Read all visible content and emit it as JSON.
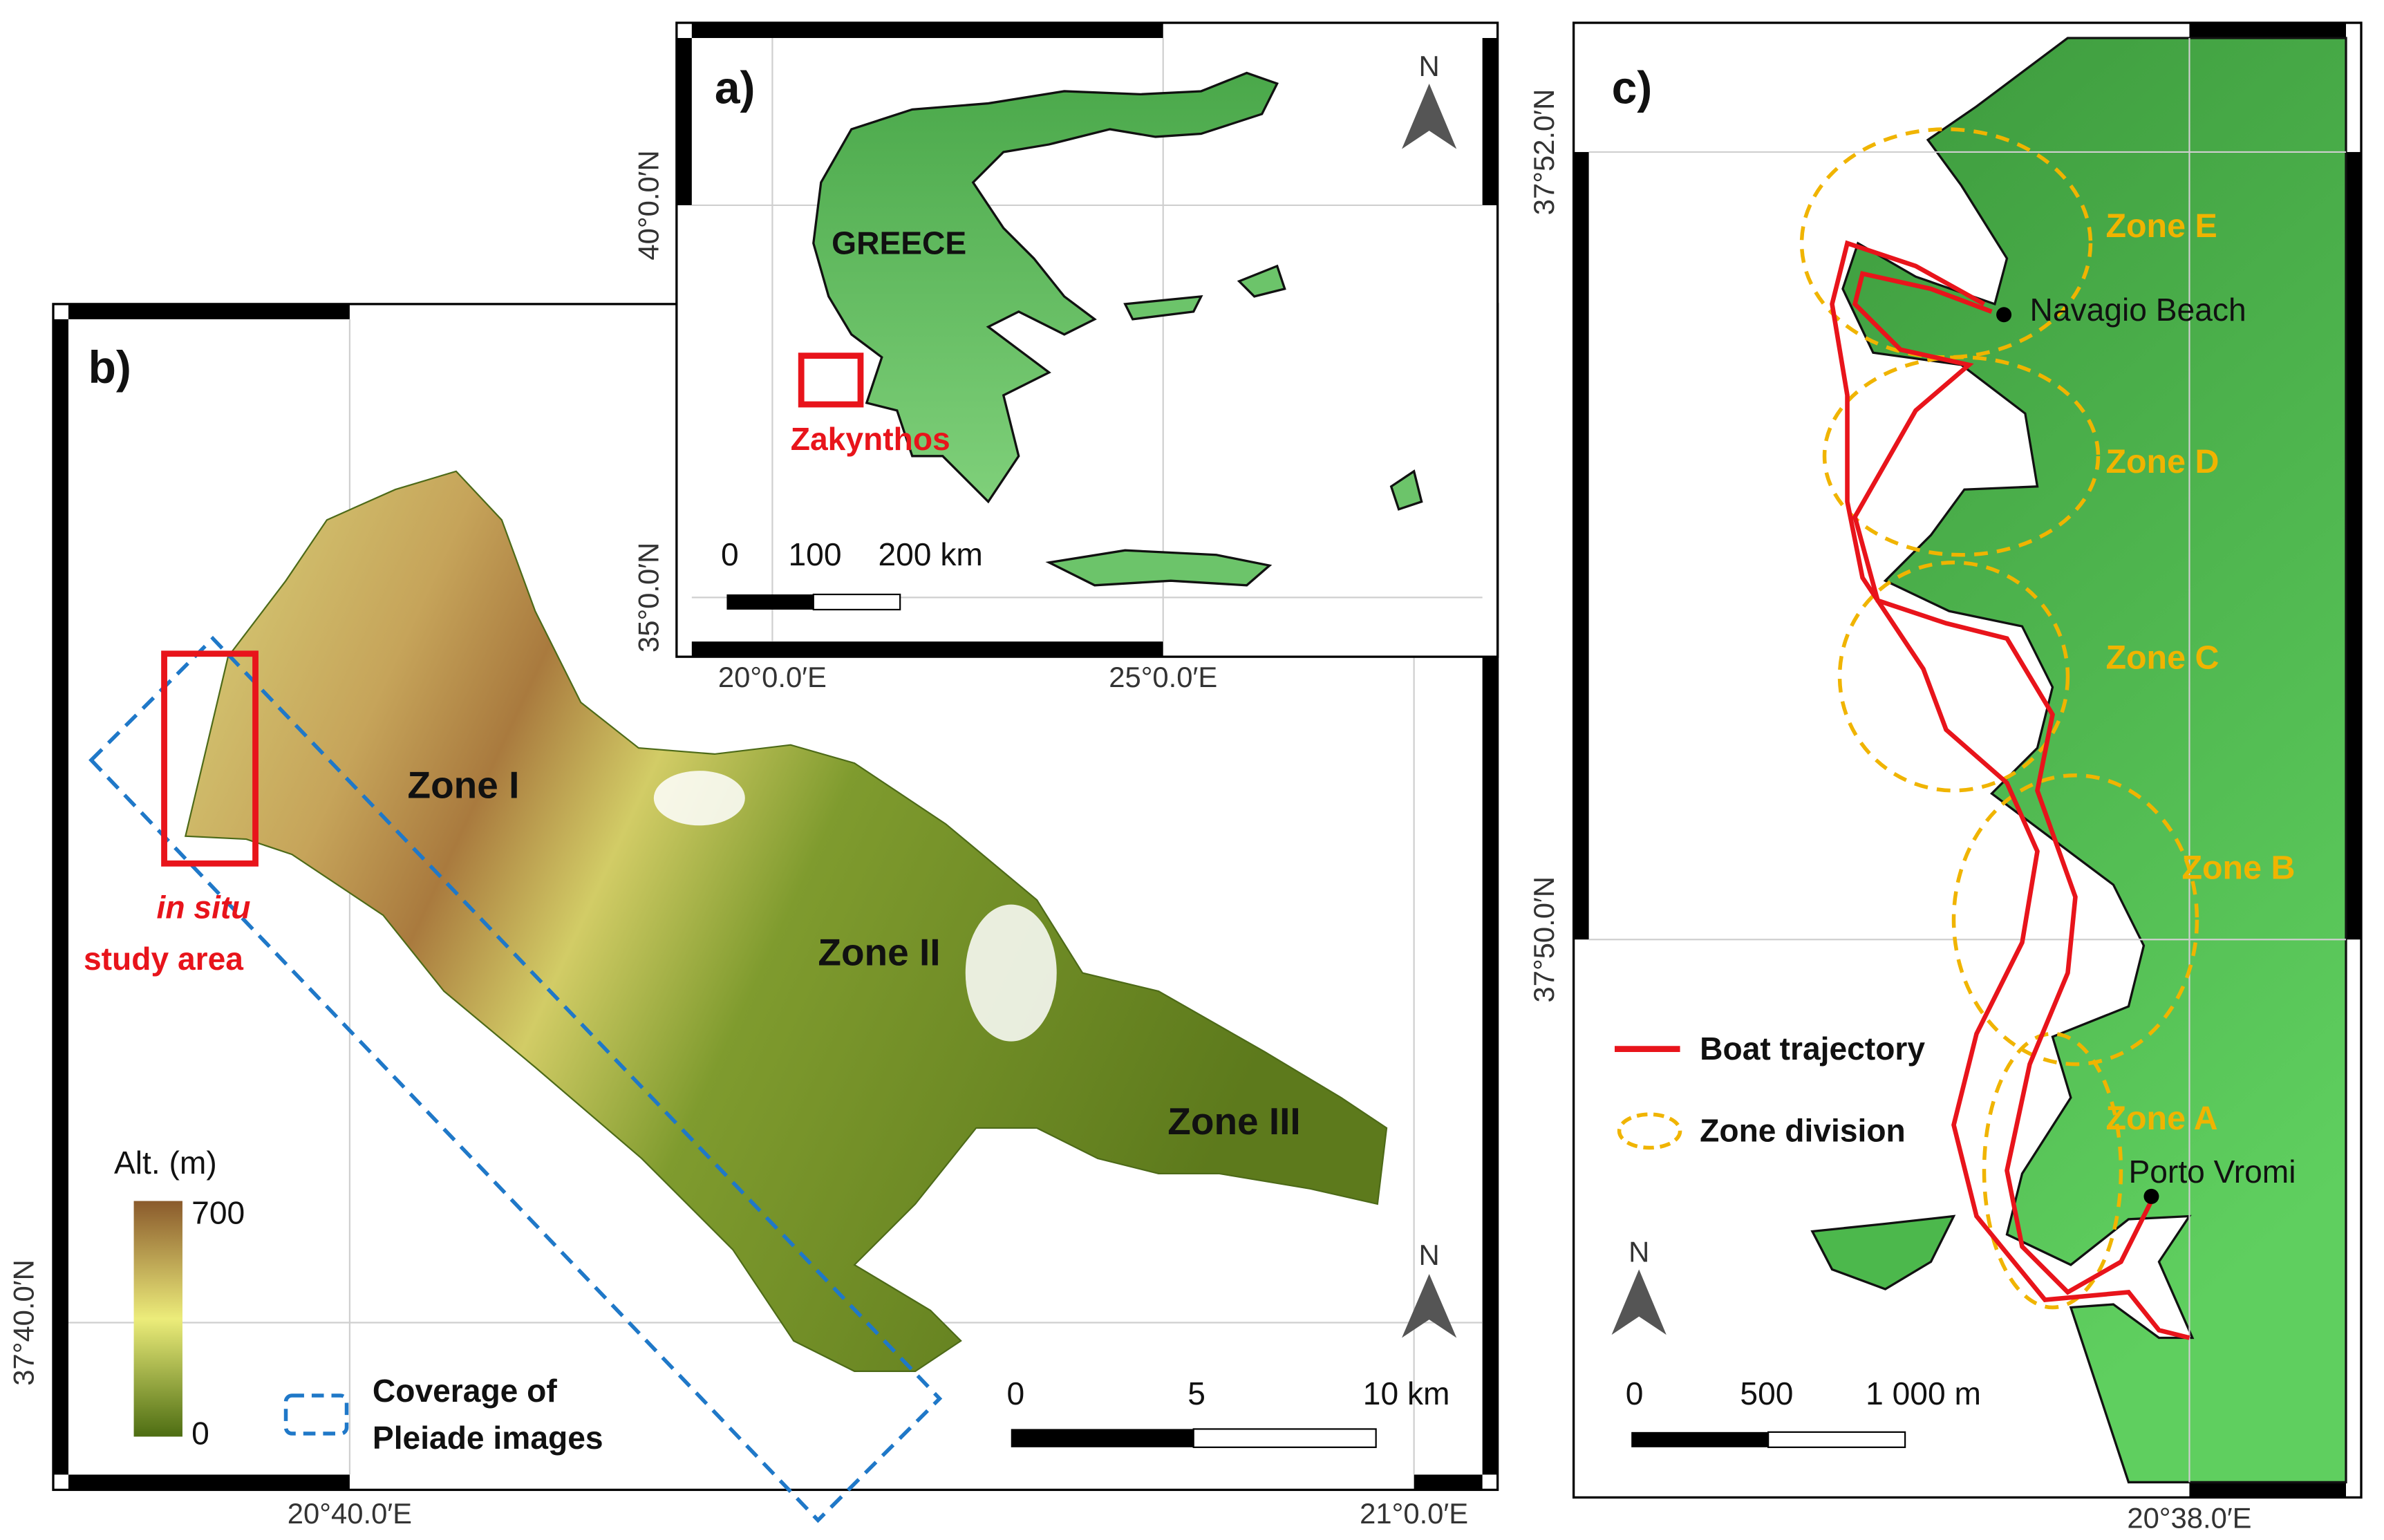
{
  "panel_a": {
    "label": "a)",
    "country": "GREECE",
    "study_site": "Zakynthos",
    "scale_labels": [
      "0",
      "100",
      "200 km"
    ],
    "lat_labels": [
      "40°0.0′N",
      "35°0.0′N"
    ],
    "lon_labels": [
      "20°0.0′E",
      "25°0.0′E"
    ],
    "north": "N"
  },
  "panel_b": {
    "label": "b)",
    "zones": [
      "Zone I",
      "Zone II",
      "Zone III"
    ],
    "study_area": [
      "in situ",
      "study area"
    ],
    "legend_title": "Alt. (m)",
    "legend_max": "700",
    "legend_min": "0",
    "coverage_label": [
      "Coverage of",
      "Pleiade images"
    ],
    "scale_labels": [
      "0",
      "5",
      "10 km"
    ],
    "lat_labels": [
      "37°40.0′N"
    ],
    "lon_labels": [
      "20°40.0′E",
      "21°0.0′E"
    ],
    "north": "N"
  },
  "panel_c": {
    "label": "c)",
    "zones": [
      "Zone E",
      "Zone D",
      "Zone C",
      "Zone B",
      "Zone A"
    ],
    "places": [
      "Navagio Beach",
      "Porto Vromi"
    ],
    "legend": [
      "Boat trajectory",
      "Zone division"
    ],
    "scale_labels": [
      "0",
      "500",
      "1 000 m"
    ],
    "lat_labels": [
      "37°52.0′N",
      "37°50.0′N"
    ],
    "lon_labels": [
      "20°38.0′E"
    ],
    "north": "N"
  }
}
